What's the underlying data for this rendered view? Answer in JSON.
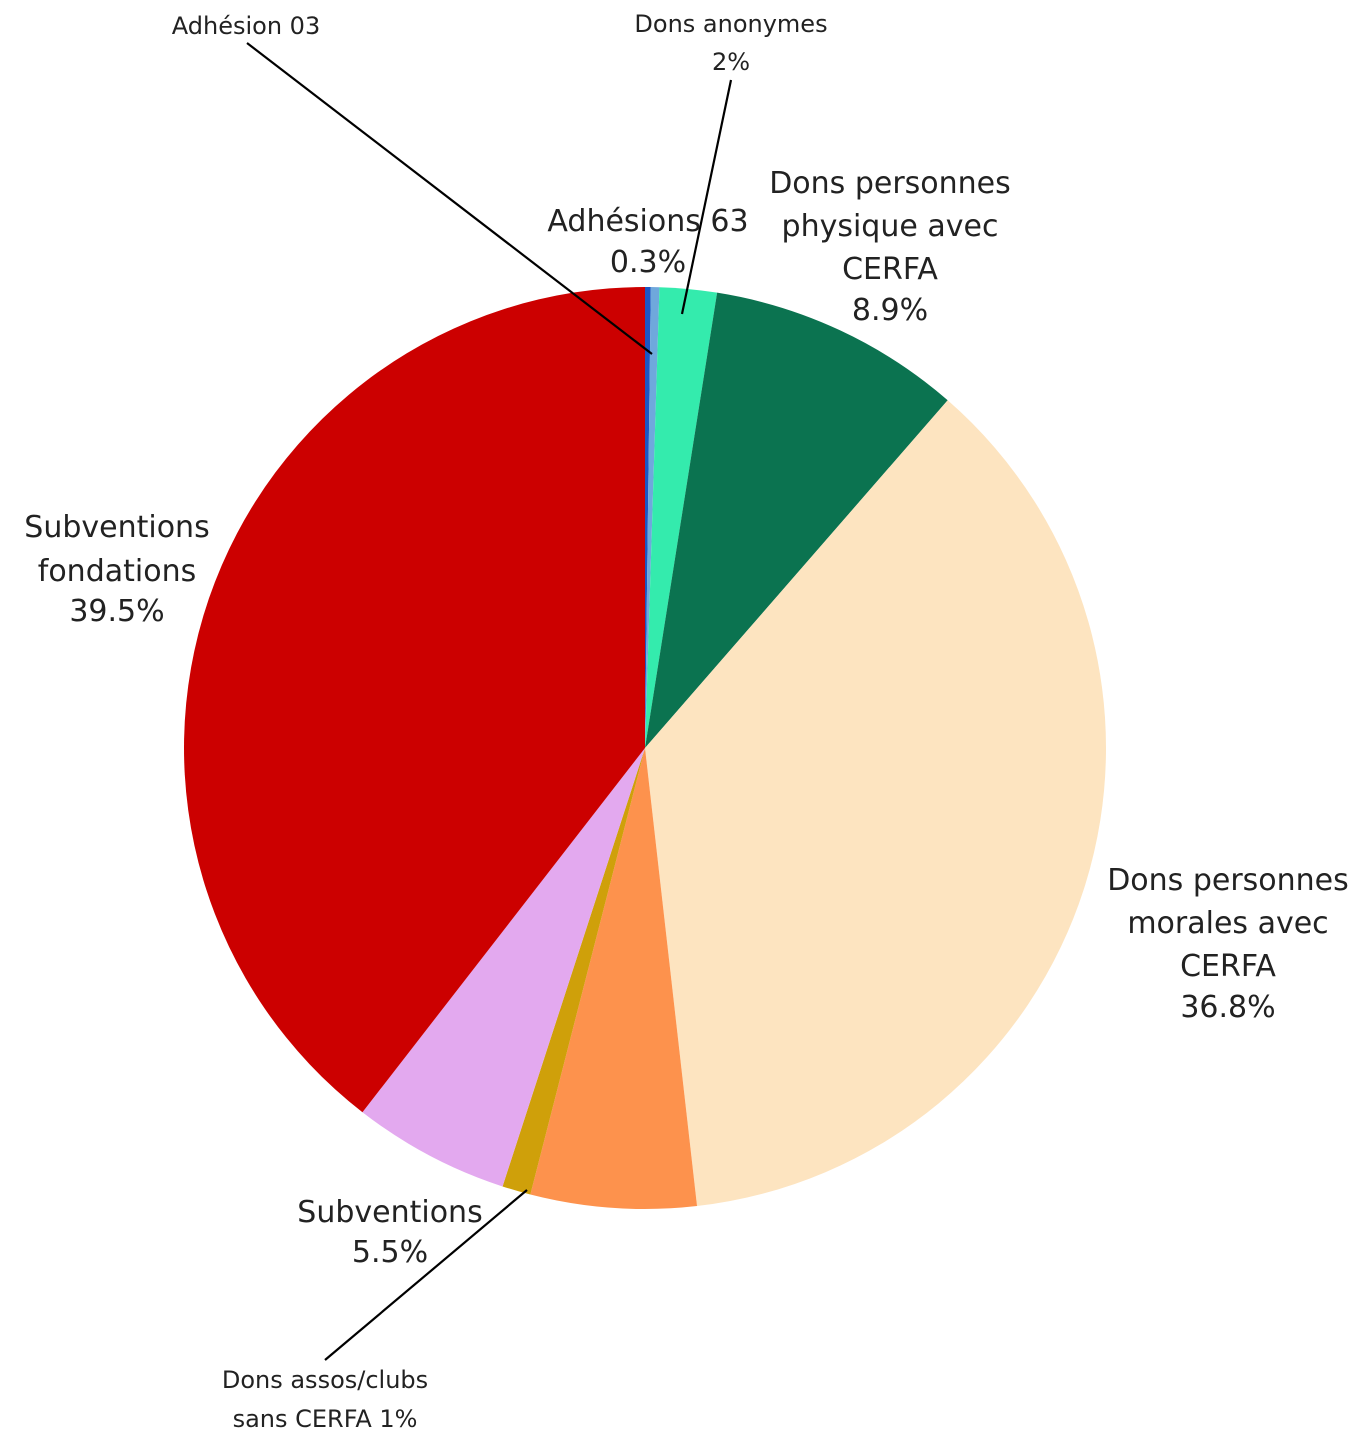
{
  "chart_data": {
    "type": "pie",
    "start_angle_deg": 0,
    "direction": "clockwise",
    "slices": [
      {
        "key": "adhesion-03",
        "name": "Adhésion 03",
        "value": 0.2,
        "label": "",
        "color": "#1a56c4"
      },
      {
        "key": "adhesions-63",
        "name": "Adhésions 63",
        "value": 0.3,
        "label": "0.3%",
        "color": "#6fa8dc"
      },
      {
        "key": "dons-anonymes",
        "name": "Dons anonymymes",
        "value": 2,
        "label": "2%",
        "color": "#34ebad"
      },
      {
        "key": "dons-pp-cerfa",
        "name": "Dons personnes physique avec CERFA",
        "value": 8.9,
        "label": "8.9%",
        "color": "#0b7350"
      },
      {
        "key": "dons-pm-cerfa",
        "name": "Dons personnes morales avec CERFA",
        "value": 36.8,
        "label": "36.8%",
        "color": "#fde4c0"
      },
      {
        "key": "orange",
        "name": "",
        "value": 5.8,
        "label": "",
        "color": "#fd924d"
      },
      {
        "key": "dons-assos",
        "name": "Dons assos/clubs sans CERFA",
        "value": 1,
        "label": "1%",
        "color": "#cfa00a"
      },
      {
        "key": "subventions",
        "name": "Subventions",
        "value": 5.5,
        "label": "5.5%",
        "color": "#e3a9ef"
      },
      {
        "key": "subventions-fondations",
        "name": "Subventions fondations",
        "value": 39.5,
        "label": "39.5%",
        "color": "#cc0000"
      }
    ]
  },
  "labels": {
    "adhesion_03": "Adhésion 03",
    "dons_anonymes_line1": "Dons anonymes",
    "dons_anonymes_line2": "2%",
    "adhesions_63_line1": "Adhésions 63",
    "adhesions_63_line2": "0.3%",
    "dons_pp_line1": "Dons personnes",
    "dons_pp_line2": "physique avec",
    "dons_pp_line3": "CERFA",
    "dons_pp_line4": "8.9%",
    "dons_pm_line1": "Dons personnes",
    "dons_pm_line2": "morales avec",
    "dons_pm_line3": "CERFA",
    "dons_pm_line4": "36.8%",
    "sub_fond_line1": "Subventions",
    "sub_fond_line2": "fondations",
    "sub_fond_line3": "39.5%",
    "sub_line1": "Subventions",
    "sub_line2": "5.5%",
    "dons_assos_line1": "Dons assos/clubs",
    "dons_assos_line2": "sans CERFA 1%"
  }
}
